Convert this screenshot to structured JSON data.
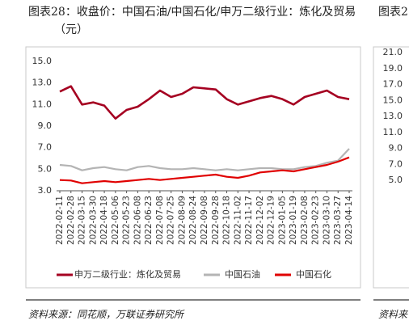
{
  "chart_data": [
    {
      "type": "line",
      "title": "图表28：收盘价：中国石油/中国石化/申万二级行业：炼化及贸易（元）",
      "source": "资料来源：同花顺，万联证券研究所",
      "categories": [
        "2022-02-11",
        "2022-02-28",
        "2022-03-15",
        "2022-03-30",
        "2022-04-18",
        "2022-05-06",
        "2022-05-23",
        "2022-06-08",
        "2022-06-23",
        "2022-07-08",
        "2022-07-25",
        "2022-08-09",
        "2022-08-24",
        "2022-09-08",
        "2022-09-28",
        "2022-10-18",
        "2022-11-02",
        "2022-11-17",
        "2022-12-02",
        "2022-12-19",
        "2023-01-05",
        "2023-01-19",
        "2023-02-08",
        "2023-02-23",
        "2023-03-10",
        "2023-03-27",
        "2023-04-14"
      ],
      "series": [
        {
          "name": "申万二级行业：炼化及贸易",
          "color": "#a50021",
          "values": [
            12.2,
            12.7,
            11.0,
            11.2,
            10.9,
            9.7,
            10.5,
            10.8,
            11.5,
            12.3,
            11.7,
            12.0,
            12.6,
            12.5,
            12.4,
            11.5,
            11.0,
            11.3,
            11.6,
            11.8,
            11.5,
            11.0,
            11.7,
            12.0,
            12.3,
            11.7,
            11.5
          ]
        },
        {
          "name": "中国石油",
          "color": "#b4b4b4",
          "values": [
            5.4,
            5.3,
            4.9,
            5.1,
            5.2,
            5.0,
            4.9,
            5.2,
            5.3,
            5.1,
            5.0,
            5.0,
            5.1,
            5.0,
            4.9,
            5.0,
            4.9,
            5.0,
            5.1,
            5.1,
            5.0,
            5.0,
            5.2,
            5.3,
            5.6,
            5.8,
            6.9
          ]
        },
        {
          "name": "中国石化",
          "color": "#e00000",
          "values": [
            4.0,
            3.95,
            3.7,
            3.8,
            3.9,
            3.8,
            3.9,
            4.0,
            4.1,
            4.0,
            4.1,
            4.2,
            4.3,
            4.4,
            4.5,
            4.3,
            4.2,
            4.4,
            4.7,
            4.8,
            4.9,
            4.8,
            5.0,
            5.2,
            5.4,
            5.7,
            6.1
          ]
        }
      ],
      "ylim": [
        3,
        15
      ],
      "yticks": [
        {
          "value": 3,
          "label": "3.0"
        },
        {
          "value": 5,
          "label": "5.0"
        },
        {
          "value": 7,
          "label": "7.0"
        },
        {
          "value": 9,
          "label": "9.0"
        },
        {
          "value": 11,
          "label": "11.0"
        },
        {
          "value": 13,
          "label": "13.0"
        },
        {
          "value": 15,
          "label": "15.0"
        }
      ]
    },
    {
      "type": "line",
      "title": "图表2",
      "source": "资料来",
      "ylim": [
        5,
        21
      ],
      "yticks": [
        {
          "value": 5,
          "label": "5.0"
        },
        {
          "value": 7,
          "label": "7.0"
        },
        {
          "value": 9,
          "label": "9.0"
        },
        {
          "value": 11,
          "label": "11.0"
        },
        {
          "value": 13,
          "label": "13.0"
        },
        {
          "value": 15,
          "label": "15.0"
        },
        {
          "value": 17,
          "label": "17.0"
        },
        {
          "value": 19,
          "label": "19.0"
        },
        {
          "value": 21,
          "label": "21.0"
        }
      ]
    }
  ]
}
